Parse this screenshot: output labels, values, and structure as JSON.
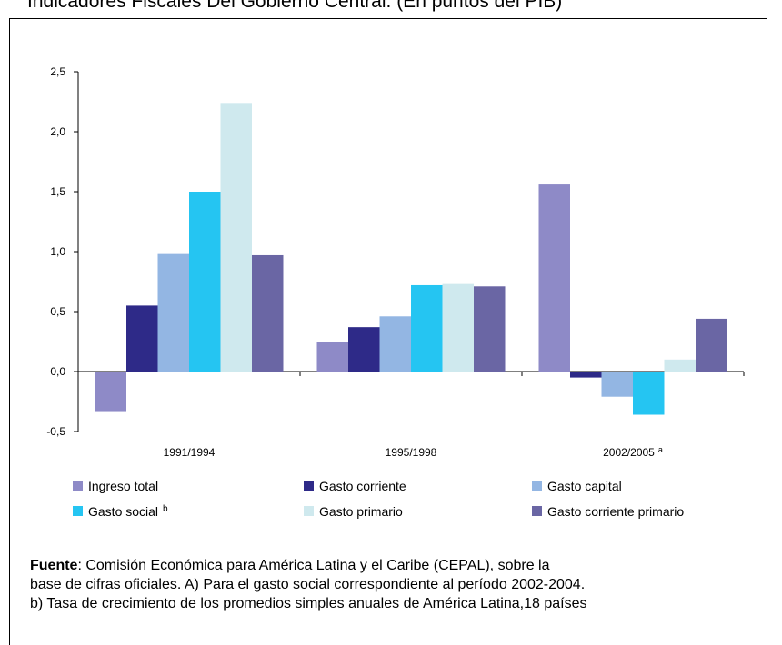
{
  "title": "Indicadores Fiscales  Del Gobierno Central. (En puntos del PIB)",
  "source": {
    "label": "Fuente",
    "line1": ": Comisión Económica para América Latina y el Caribe (CEPAL), sobre la",
    "line2": "base de cifras oficiales. A) Para el gasto social correspondiente al período 2002-2004.",
    "line3": "b)  Tasa de crecimiento de los promedios simples anuales de América Latina,18 países"
  },
  "chart_data": {
    "type": "bar",
    "title": "",
    "xlabel": "",
    "ylabel": "",
    "ylim": [
      -0.5,
      2.5
    ],
    "yticks": [
      "2,5",
      "2,0",
      "1,5",
      "1,0",
      "0,5",
      "0,0",
      "-0,5"
    ],
    "categories": [
      "1991/1994",
      "1995/1998",
      "2002/2005"
    ],
    "category_superscripts": [
      "",
      "",
      "a"
    ],
    "legend_position": "bottom",
    "series": [
      {
        "name": "Ingreso total",
        "superscript": "",
        "color": "#8e8ac7",
        "values": [
          -0.33,
          0.25,
          1.56
        ]
      },
      {
        "name": "Gasto corriente",
        "superscript": "",
        "color": "#2e2a88",
        "values": [
          0.55,
          0.37,
          -0.05
        ]
      },
      {
        "name": "Gasto capital",
        "superscript": "",
        "color": "#93b6e3",
        "values": [
          0.98,
          0.46,
          -0.21
        ]
      },
      {
        "name": "Gasto social",
        "superscript": "b",
        "color": "#25c5f2",
        "values": [
          1.5,
          0.72,
          -0.36
        ]
      },
      {
        "name": "Gasto primario",
        "superscript": "",
        "color": "#cfe9ee",
        "values": [
          2.24,
          0.73,
          0.1
        ]
      },
      {
        "name": "Gasto corriente primario",
        "superscript": "",
        "color": "#6a66a4",
        "values": [
          0.97,
          0.71,
          0.44
        ]
      }
    ]
  }
}
